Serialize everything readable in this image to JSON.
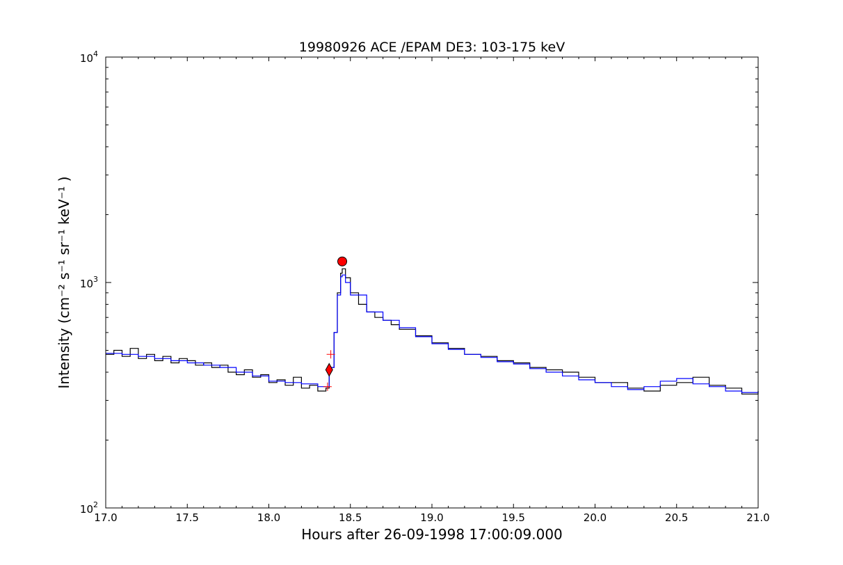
{
  "chart_data": {
    "type": "line",
    "title": "19980926 ACE /EPAM DE3: 103-175 keV",
    "xlabel": "Hours after 26-09-1998 17:00:09.000",
    "ylabel": "Intensity (cm⁻² s⁻¹ sr⁻¹ keV⁻¹ )",
    "xlim": [
      17.0,
      21.0
    ],
    "ylim": [
      100,
      10000
    ],
    "yscale": "log",
    "grid": false,
    "xticks": [
      "17.0",
      "17.5",
      "18.0",
      "18.5",
      "19.0",
      "19.5",
      "20.0",
      "20.5",
      "21.0"
    ],
    "yticks": [
      {
        "value": 100,
        "base": "10",
        "exp": "2"
      },
      {
        "value": 1000,
        "base": "10",
        "exp": "3"
      },
      {
        "value": 10000,
        "base": "10",
        "exp": "4"
      }
    ],
    "series": [
      {
        "color": "#000000",
        "style": "steps",
        "x": [
          17.0,
          17.05,
          17.1,
          17.15,
          17.2,
          17.25,
          17.3,
          17.35,
          17.4,
          17.45,
          17.5,
          17.55,
          17.6,
          17.65,
          17.7,
          17.75,
          17.8,
          17.85,
          17.9,
          17.95,
          18.0,
          18.05,
          18.1,
          18.15,
          18.2,
          18.25,
          18.3,
          18.35,
          18.37,
          18.4,
          18.42,
          18.44,
          18.45,
          18.47,
          18.5,
          18.55,
          18.6,
          18.65,
          18.7,
          18.75,
          18.8,
          18.9,
          19.0,
          19.1,
          19.2,
          19.3,
          19.4,
          19.5,
          19.6,
          19.7,
          19.8,
          19.9,
          20.0,
          20.1,
          20.2,
          20.3,
          20.4,
          20.5,
          20.6,
          20.7,
          20.8,
          20.9,
          21.0
        ],
        "values": [
          480,
          500,
          470,
          510,
          460,
          480,
          450,
          470,
          440,
          460,
          450,
          430,
          440,
          420,
          430,
          400,
          390,
          410,
          380,
          390,
          360,
          370,
          350,
          380,
          340,
          350,
          330,
          340,
          420,
          600,
          900,
          1100,
          1150,
          1050,
          900,
          800,
          740,
          700,
          680,
          650,
          620,
          580,
          540,
          510,
          480,
          470,
          450,
          440,
          420,
          410,
          400,
          380,
          360,
          360,
          340,
          330,
          350,
          360,
          380,
          350,
          340,
          320,
          330
        ]
      },
      {
        "color": "#0000ff",
        "style": "steps",
        "x": [
          17.0,
          17.1,
          17.2,
          17.3,
          17.4,
          17.5,
          17.6,
          17.7,
          17.8,
          17.9,
          18.0,
          18.1,
          18.2,
          18.3,
          18.35,
          18.37,
          18.4,
          18.42,
          18.44,
          18.45,
          18.47,
          18.5,
          18.6,
          18.7,
          18.8,
          18.9,
          19.0,
          19.1,
          19.2,
          19.3,
          19.4,
          19.5,
          19.6,
          19.7,
          19.8,
          19.9,
          20.0,
          20.1,
          20.2,
          20.3,
          20.4,
          20.5,
          20.6,
          20.7,
          20.8,
          20.9,
          21.0
        ],
        "values": [
          485,
          480,
          470,
          460,
          450,
          440,
          430,
          420,
          400,
          385,
          365,
          360,
          355,
          345,
          345,
          420,
          600,
          880,
          1060,
          1080,
          1000,
          880,
          740,
          680,
          630,
          575,
          535,
          505,
          480,
          465,
          445,
          435,
          415,
          400,
          385,
          370,
          360,
          345,
          335,
          345,
          365,
          375,
          355,
          345,
          330,
          325,
          330
        ]
      }
    ],
    "markers": [
      {
        "type": "circle",
        "color": "#ff0000",
        "x": 18.45,
        "y": 1240
      },
      {
        "type": "diamond",
        "color": "#ff0000",
        "x": 18.37,
        "y": 410
      },
      {
        "type": "plus",
        "color": "#ff0000",
        "x": 18.38,
        "y": 480
      },
      {
        "type": "plus",
        "color": "#ff0000",
        "x": 18.36,
        "y": 345
      }
    ]
  }
}
